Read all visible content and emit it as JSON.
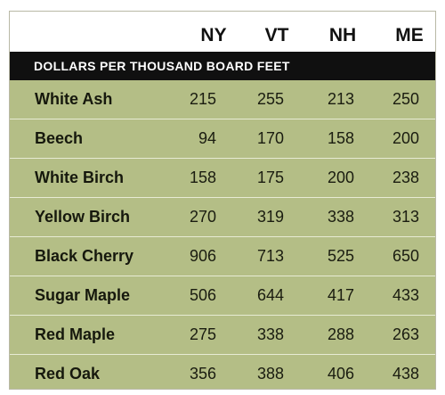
{
  "chart_data": {
    "type": "table",
    "title": "",
    "subtitle": "DOLLARS PER THOUSAND BOARD FEET",
    "columns": [
      "NY",
      "VT",
      "NH",
      "ME"
    ],
    "rows": [
      {
        "name": "White Ash",
        "values": [
          215,
          255,
          213,
          250
        ]
      },
      {
        "name": "Beech",
        "values": [
          94,
          170,
          158,
          200
        ]
      },
      {
        "name": "White Birch",
        "values": [
          158,
          175,
          200,
          238
        ]
      },
      {
        "name": "Yellow Birch",
        "values": [
          270,
          319,
          338,
          313
        ]
      },
      {
        "name": "Black Cherry",
        "values": [
          906,
          713,
          525,
          650
        ]
      },
      {
        "name": "Sugar Maple",
        "values": [
          506,
          644,
          417,
          433
        ]
      },
      {
        "name": "Red Maple",
        "values": [
          275,
          338,
          288,
          263
        ]
      },
      {
        "name": "Red Oak",
        "values": [
          356,
          388,
          406,
          438
        ]
      }
    ]
  },
  "colors": {
    "body": "#b4be86",
    "band": "#101010",
    "header": "#ffffff"
  }
}
